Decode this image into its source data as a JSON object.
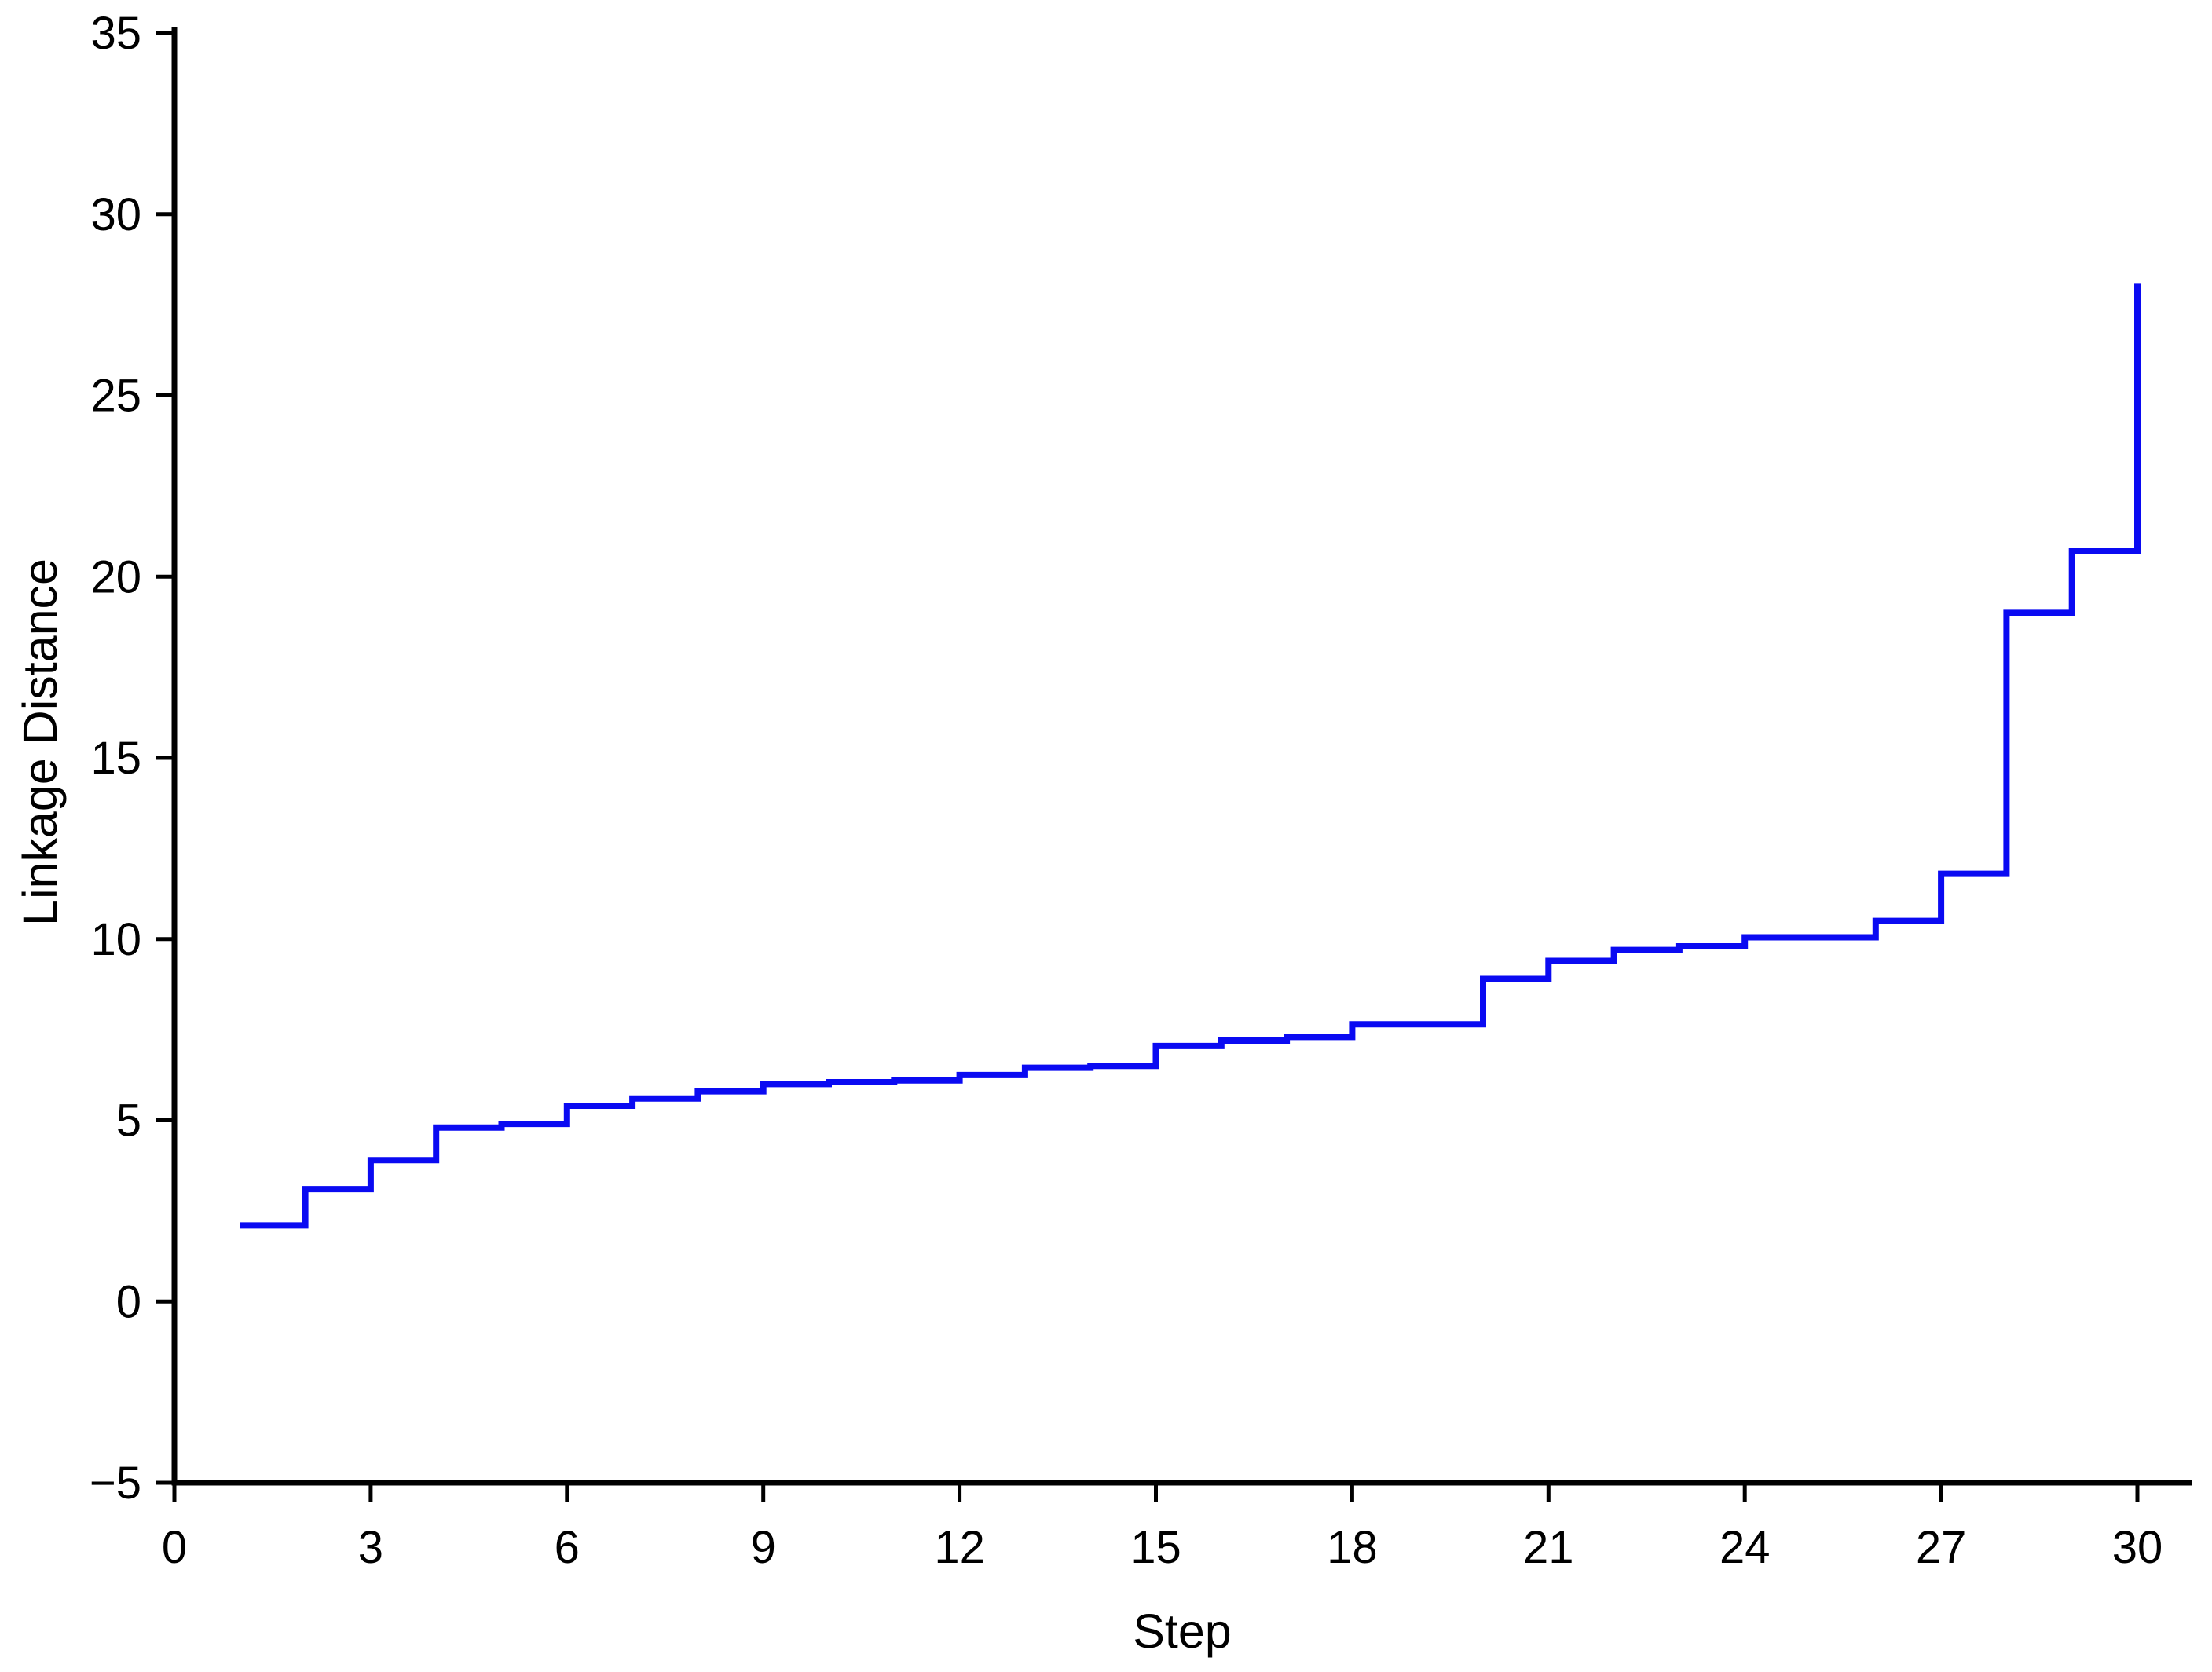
{
  "chart_data": {
    "type": "line",
    "subtype": "step-pre",
    "title": "",
    "xlabel": "Step",
    "ylabel": "Linkage Distance",
    "x": [
      1,
      2,
      3,
      4,
      5,
      6,
      7,
      8,
      9,
      10,
      11,
      12,
      13,
      14,
      15,
      16,
      17,
      18,
      19,
      20,
      21,
      22,
      23,
      24,
      25,
      26,
      27,
      28,
      29,
      30
    ],
    "values": [
      2.1,
      3.1,
      3.9,
      4.8,
      4.9,
      5.4,
      5.6,
      5.8,
      6.0,
      6.05,
      6.1,
      6.25,
      6.45,
      6.5,
      7.05,
      7.2,
      7.3,
      7.65,
      7.65,
      8.9,
      9.4,
      9.7,
      9.8,
      10.05,
      10.05,
      10.5,
      11.8,
      19.0,
      20.7,
      28.1
    ],
    "xlim": [
      0,
      30.8
    ],
    "ylim": [
      -5,
      35
    ],
    "xticks": [
      0,
      3,
      6,
      9,
      12,
      15,
      18,
      21,
      24,
      27,
      30
    ],
    "yticks": [
      -5,
      0,
      5,
      10,
      15,
      20,
      25,
      30,
      35
    ],
    "grid": false,
    "legend": null,
    "line_color": "#0a0af2",
    "axis_color": "#000000"
  }
}
